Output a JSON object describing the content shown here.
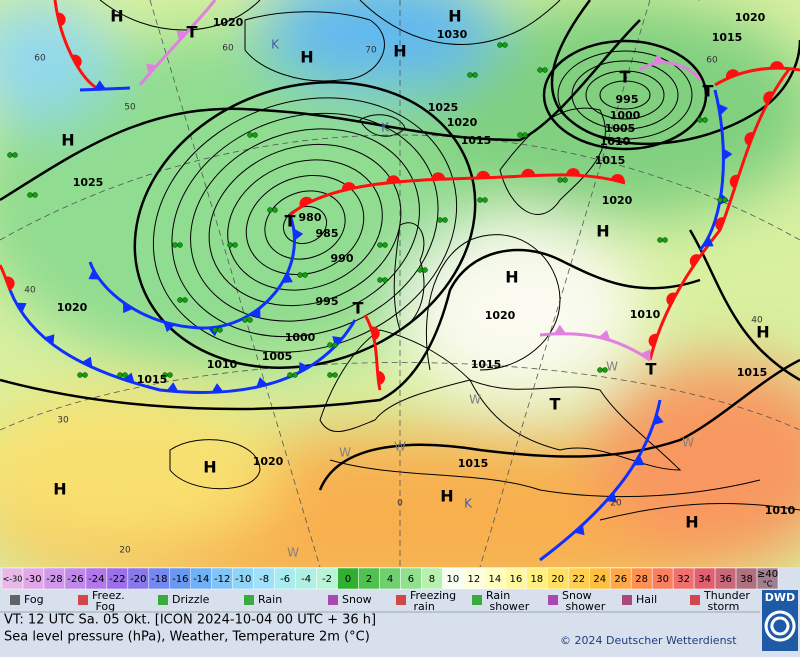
{
  "map": {
    "pressure_labels": [
      "1020",
      "1030",
      "1020",
      "1015",
      "1025",
      "1020",
      "1015",
      "995",
      "1000",
      "1005",
      "1010",
      "1015",
      "1020",
      "1025",
      "980",
      "985",
      "990",
      "995",
      "1000",
      "1005",
      "1010",
      "1015",
      "1020",
      "1020",
      "1015",
      "1010",
      "1015",
      "1015",
      "1020",
      "1010"
    ],
    "centers": [
      "H",
      "T",
      "H",
      "H",
      "H",
      "T",
      "T",
      "H",
      "T",
      "T",
      "H",
      "H",
      "H",
      "H",
      "H",
      "T",
      "T",
      "H",
      "H"
    ],
    "airmass_labels": [
      "K",
      "K",
      "K",
      "W",
      "W",
      "W",
      "W",
      "W",
      "W"
    ],
    "grid_labels": [
      "60",
      "50",
      "40",
      "30",
      "20",
      "0",
      "20",
      "40",
      "60",
      "70",
      "60"
    ]
  },
  "temperature_scale": {
    "unit": "°C",
    "steps": [
      {
        "label": "<-30",
        "color": "#e8b8e8"
      },
      {
        "label": "-30",
        "color": "#e0a8e8"
      },
      {
        "label": "-28",
        "color": "#d098e8"
      },
      {
        "label": "-26",
        "color": "#c088e8"
      },
      {
        "label": "-24",
        "color": "#b078e8"
      },
      {
        "label": "-22",
        "color": "#9c70e8"
      },
      {
        "label": "-20",
        "color": "#8878e8"
      },
      {
        "label": "-18",
        "color": "#7488f0"
      },
      {
        "label": "-16",
        "color": "#6898f0"
      },
      {
        "label": "-14",
        "color": "#70b0f4"
      },
      {
        "label": "-12",
        "color": "#80c4f8"
      },
      {
        "label": "-10",
        "color": "#90d4f8"
      },
      {
        "label": "-8",
        "color": "#a0e0f8"
      },
      {
        "label": "-6",
        "color": "#a8ecf0"
      },
      {
        "label": "-4",
        "color": "#b0f0e4"
      },
      {
        "label": "-2",
        "color": "#b8f4d8"
      },
      {
        "label": "0",
        "color": "#30b030"
      },
      {
        "label": "2",
        "color": "#50c050"
      },
      {
        "label": "4",
        "color": "#70d070"
      },
      {
        "label": "6",
        "color": "#90e090"
      },
      {
        "label": "8",
        "color": "#b8f0b0"
      },
      {
        "label": "10",
        "color": "#f8fff0"
      },
      {
        "label": "12",
        "color": "#ffffe0"
      },
      {
        "label": "14",
        "color": "#ffffc0"
      },
      {
        "label": "16",
        "color": "#fff8a0"
      },
      {
        "label": "18",
        "color": "#fff080"
      },
      {
        "label": "20",
        "color": "#ffe060"
      },
      {
        "label": "22",
        "color": "#ffd050"
      },
      {
        "label": "24",
        "color": "#ffc040"
      },
      {
        "label": "26",
        "color": "#ffa848"
      },
      {
        "label": "28",
        "color": "#ff9050"
      },
      {
        "label": "30",
        "color": "#f88060"
      },
      {
        "label": "32",
        "color": "#f07070"
      },
      {
        "label": "34",
        "color": "#e06070"
      },
      {
        "label": "36",
        "color": "#c86878"
      },
      {
        "label": "38",
        "color": "#b07080"
      },
      {
        "label": "≥40",
        "color": "#a08090"
      }
    ]
  },
  "weather_legend": [
    "Fog",
    "Freez. Fog",
    "Drizzle",
    "Rain",
    "Snow",
    "Freezing rain",
    "Rain shower",
    "Snow shower",
    "Hail",
    "Thunder storm"
  ],
  "footer": {
    "valid_time": "VT: 12 UTC Sa.  05 Okt. [ICON 2024-10-04  00 UTC + 36 h]",
    "description": "Sea level pressure (hPa), Weather, Temperature 2m (°C)",
    "copyright": "© 2024 Deutscher Wetterdienst",
    "logo": "DWD"
  }
}
